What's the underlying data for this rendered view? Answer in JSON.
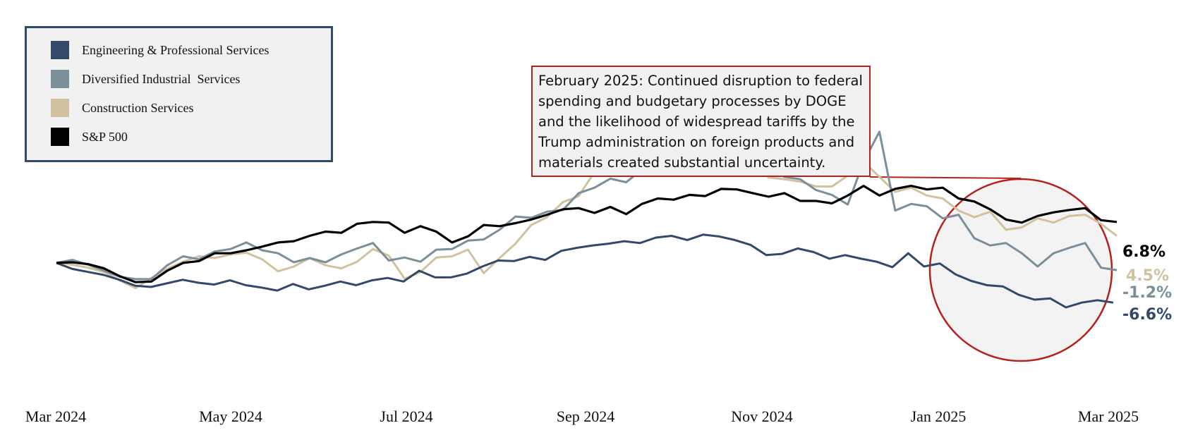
{
  "chart_data": {
    "type": "line",
    "title": "",
    "xlabel": "",
    "ylabel": "",
    "x_tick_labels": [
      "Mar 2024",
      "May 2024",
      "Jul 2024",
      "Sep 2024",
      "Nov 2024",
      "Jan 2025",
      "Mar 2025"
    ],
    "ylim": [
      -17,
      24
    ],
    "y_unit": "% cumulative change",
    "grid": false,
    "legend_position": "top-left",
    "series": [
      {
        "name": "Engineering & Professional Services",
        "color": "#33496a",
        "end_label": "-6.6%",
        "values": [
          0,
          -1,
          -1.5,
          -2,
          -2.8,
          -3.8,
          -4,
          -3.4,
          -2.8,
          -3.3,
          -3.6,
          -2.9,
          -3.7,
          -4.1,
          -4.6,
          -3.5,
          -4.4,
          -3.8,
          -3.1,
          -3.7,
          -2.9,
          -2.5,
          -3.1,
          -1.3,
          -2.4,
          -2.4,
          -1.8,
          -0.6,
          0.4,
          0.3,
          1,
          0.5,
          2,
          2.5,
          2.9,
          3.2,
          3.6,
          3.3,
          4.2,
          4.5,
          3.8,
          4.7,
          4.4,
          3.8,
          3,
          1.3,
          1.5,
          2.4,
          1.8,
          0.7,
          1.3,
          0.7,
          0.2,
          -0.7,
          1.6,
          -0.6,
          -0.1,
          -1.9,
          -3,
          -3.7,
          -3.9,
          -5.3,
          -6.1,
          -5.9,
          -7.4,
          -6.6,
          -6.2,
          -6.6
        ],
        "endpoint_x": 1578
      },
      {
        "name": "Diversified Industrial  Services",
        "color": "#7b8f9b",
        "end_label": "-1.2%",
        "values": [
          0,
          0.5,
          -0.3,
          -1.3,
          -2.3,
          -2.7,
          -2.7,
          -0.4,
          1.1,
          0.6,
          1.9,
          2.3,
          3.4,
          2.1,
          1.6,
          0.1,
          0.8,
          0.1,
          1.4,
          2.4,
          3.3,
          0.4,
          0.9,
          0.2,
          2.2,
          2.3,
          3.7,
          3.9,
          5.5,
          7.7,
          7.5,
          8.5,
          8.8,
          11.6,
          12.5,
          14,
          13.4,
          15.5,
          16.4,
          17.1,
          16.4,
          17.7,
          17.4,
          17.3,
          17.1,
          15.6,
          14.3,
          13.9,
          12.1,
          11.3,
          9.7,
          16.8,
          21.8,
          8.7,
          9.8,
          9.4,
          7.4,
          8,
          4.1,
          2.9,
          3.3,
          1.6,
          -0.6,
          1.6,
          2.5,
          3.3,
          -0.8,
          -1.2
        ],
        "endpoint_x": 1583
      },
      {
        "name": "Construction Services",
        "color": "#d2c19e",
        "end_label": "4.5%",
        "values": [
          0,
          -0.3,
          -0.8,
          -1.5,
          -2.9,
          -4.2,
          -2.5,
          -1,
          0.2,
          1.1,
          0.8,
          1.4,
          1.7,
          0.6,
          -1.4,
          -0.6,
          0.8,
          -0.4,
          -0.9,
          0.2,
          2.3,
          1.2,
          -2.6,
          -1.5,
          0.9,
          1.1,
          2.2,
          -1.7,
          0.8,
          3.2,
          6.3,
          7.6,
          10.1,
          11.1,
          15.1,
          18,
          16,
          17.8,
          18.5,
          19.3,
          19.2,
          18.5,
          18,
          17.6,
          16.3,
          14.2,
          13.9,
          13.5,
          12.7,
          12.7,
          14.5,
          16.8,
          14.3,
          11.8,
          12.5,
          11.2,
          10.7,
          8.7,
          7.6,
          8.5,
          5.5,
          5.9,
          7.4,
          6.7,
          7.8,
          8,
          6.5,
          4.5
        ],
        "endpoint_x": 1583
      },
      {
        "name": "S&P 500",
        "color": "#000000",
        "end_label": "6.8%",
        "values": [
          0,
          0.1,
          -0.2,
          -0.9,
          -2.2,
          -3.2,
          -3.1,
          -1.3,
          0,
          0.3,
          1.6,
          1.6,
          2.1,
          2.7,
          3.4,
          3.6,
          4.5,
          5.2,
          5,
          6.5,
          6.8,
          6.7,
          5,
          6.1,
          5.2,
          3.4,
          4.4,
          6.3,
          6.1,
          6.6,
          7.2,
          8,
          8.9,
          9.1,
          8.3,
          9.3,
          8.1,
          9.8,
          10.7,
          10.5,
          11.3,
          11.1,
          12.3,
          12.2,
          11.6,
          11,
          11.6,
          10.3,
          10.3,
          9.9,
          11.2,
          12.8,
          11.2,
          12.3,
          12.8,
          12.2,
          12.5,
          10.7,
          10.2,
          8.9,
          7.2,
          6.7,
          7.8,
          8.4,
          8.8,
          9.1,
          7.1,
          6.8
        ],
        "endpoint_x": 1583
      }
    ],
    "endpoint_markers": [
      {
        "x_index": 67,
        "series_index": 0
      }
    ],
    "annotation": {
      "lines": [
        "February 2025: Continued disruption to federal",
        "spending and budgetary processes by DOGE",
        "and the likelihood of widespread tariffs by the",
        "Trump administration on foreign products and",
        "materials created substantial uncertainty."
      ],
      "border_color": "#b5221c"
    },
    "highlight": {
      "shape": "circle",
      "border_color": "#b5221c",
      "fill": "#f3f3f3"
    }
  }
}
